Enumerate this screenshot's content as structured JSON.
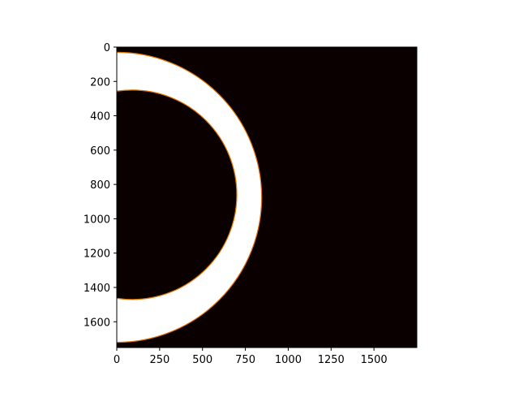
{
  "chart_data": {
    "type": "heatmap",
    "title": "",
    "xlabel": "",
    "ylabel": "",
    "xlim": [
      0,
      1750
    ],
    "ylim": [
      1750,
      0
    ],
    "x_ticks": [
      0,
      250,
      500,
      750,
      1000,
      1250,
      1500
    ],
    "y_ticks": [
      0,
      200,
      400,
      600,
      800,
      1000,
      1200,
      1400,
      1600
    ],
    "x_tick_labels": [
      "0",
      "250",
      "500",
      "750",
      "1000",
      "1250",
      "1500"
    ],
    "y_tick_labels": [
      "0",
      "200",
      "400",
      "600",
      "800",
      "1000",
      "1200",
      "1400",
      "1600"
    ],
    "colormap": "hot",
    "background_color": "#0a0000",
    "fill_color": "#ffffff",
    "edge_color": "#e07000",
    "region": "crescent",
    "outer_circle": {
      "cx": 0,
      "cy": 875,
      "r": 845
    },
    "inner_circle": {
      "cx": 90,
      "cy": 860,
      "r": 610
    },
    "grid": false,
    "legend": "none"
  }
}
